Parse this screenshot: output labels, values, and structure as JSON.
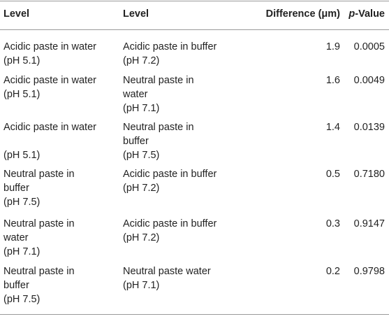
{
  "table": {
    "headers": {
      "level1": "Level",
      "level2": "Level",
      "difference": "Difference (μm)",
      "pvalue_italic": "p",
      "pvalue_rest": "-Value"
    },
    "rows": [
      {
        "level1": [
          "Acidic paste in water",
          "(pH 5.1)"
        ],
        "level2": [
          "Acidic paste in buffer",
          "(pH 7.2)"
        ],
        "difference": "1.9",
        "pvalue": "0.0005"
      },
      {
        "level1": [
          "Acidic paste in water",
          "(pH 5.1)"
        ],
        "level2": [
          "Neutral paste in",
          "water",
          "(pH 7.1)"
        ],
        "difference": "1.6",
        "pvalue": "0.0049"
      },
      {
        "level1": [
          "Acidic paste in water",
          "",
          "(pH 5.1)"
        ],
        "level2": [
          "Neutral paste in",
          "buffer",
          "(pH 7.5)"
        ],
        "difference": "1.4",
        "pvalue": "0.0139"
      },
      {
        "level1": [
          "Neutral paste in",
          "buffer",
          "(pH 7.5)"
        ],
        "level2": [
          "Acidic paste in buffer",
          "(pH 7.2)"
        ],
        "difference": "0.5",
        "pvalue": "0.7180"
      },
      {
        "level1": [
          "Neutral paste in",
          "water",
          "(pH 7.1)"
        ],
        "level2": [
          "Acidic paste in buffer",
          "(pH 7.2)"
        ],
        "difference": "0.3",
        "pvalue": "0.9147"
      },
      {
        "level1": [
          "Neutral paste in",
          "buffer",
          "(pH 7.5)"
        ],
        "level2": [
          "Neutral paste water",
          "(pH 7.1)"
        ],
        "difference": "0.2",
        "pvalue": "0.9798"
      }
    ]
  }
}
